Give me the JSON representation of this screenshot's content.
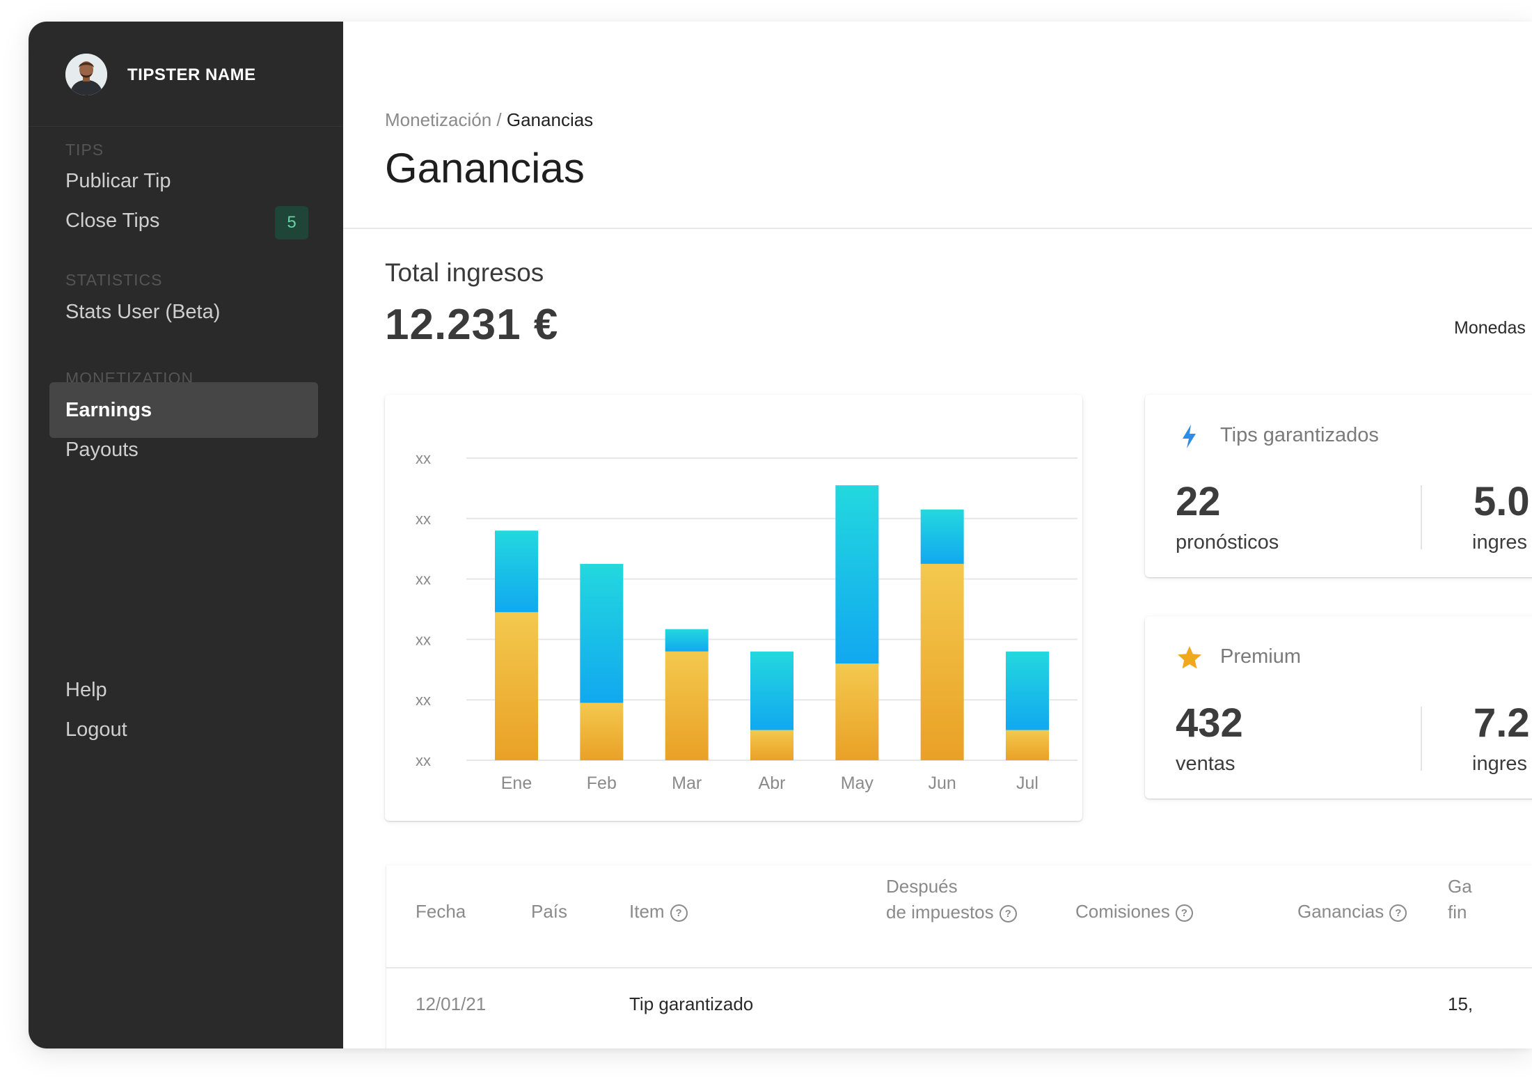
{
  "user": {
    "name": "TIPSTER NAME"
  },
  "sidebar": {
    "sections": [
      {
        "label": "TIPS",
        "items": [
          {
            "label": "Publicar Tip"
          },
          {
            "label": "Close Tips",
            "badge": "5"
          }
        ]
      },
      {
        "label": "STATISTICS",
        "items": [
          {
            "label": "Stats User (Beta)"
          }
        ]
      },
      {
        "label": "MONETIZATION",
        "items": [
          {
            "label": "Earnings",
            "active": true
          },
          {
            "label": "Payouts"
          }
        ]
      }
    ],
    "footer": [
      {
        "label": "Help"
      },
      {
        "label": "Logout"
      }
    ]
  },
  "header": {
    "breadcrumb": {
      "parent": "Monetización",
      "separator": " / ",
      "current": "Ganancias"
    },
    "title": "Ganancias"
  },
  "summary": {
    "label": "Total ingresos",
    "value": "12.231 €",
    "currency_label": "Monedas"
  },
  "chart_data": {
    "type": "bar",
    "stacked": true,
    "categories": [
      "Ene",
      "Feb",
      "Mar",
      "Abr",
      "May",
      "Jun",
      "Jul"
    ],
    "y_tick_labels": [
      "xx",
      "xx",
      "xx",
      "xx",
      "xx",
      "xx"
    ],
    "ylim": [
      0,
      5
    ],
    "series": [
      {
        "values": [
          2.45,
          0.95,
          1.8,
          0.5,
          1.6,
          3.25,
          0.5
        ],
        "color_top": "#f3c94e",
        "color_bottom": "#e9a126"
      },
      {
        "values": [
          1.35,
          2.3,
          0.37,
          1.3,
          2.95,
          0.9,
          1.3
        ],
        "color_top": "#23d8de",
        "color_bottom": "#11a8f0"
      }
    ],
    "grid": true,
    "legend": "none"
  },
  "stats": [
    {
      "icon": "lightning-icon",
      "icon_color": "#2f8be6",
      "title": "Tips garantizados",
      "value": "22",
      "sub": "pronósticos",
      "value2": "5.0",
      "sub2": "ingres"
    },
    {
      "icon": "star-icon",
      "icon_color": "#f0a81f",
      "title": "Premium",
      "value": "432",
      "sub": "ventas",
      "value2": "7.2",
      "sub2": "ingres"
    }
  ],
  "table": {
    "columns": {
      "fecha": "Fecha",
      "pais": "País",
      "item": "Item",
      "despues_1": "Después",
      "despues_2": "de impuestos",
      "comisiones": "Comisiones",
      "ganancias": "Ganancias",
      "final_1": "Ga",
      "final_2": "fin"
    },
    "rows": [
      {
        "fecha": "12/01/21",
        "pais": "",
        "item": "Tip garantizado",
        "final": "15,"
      }
    ]
  }
}
